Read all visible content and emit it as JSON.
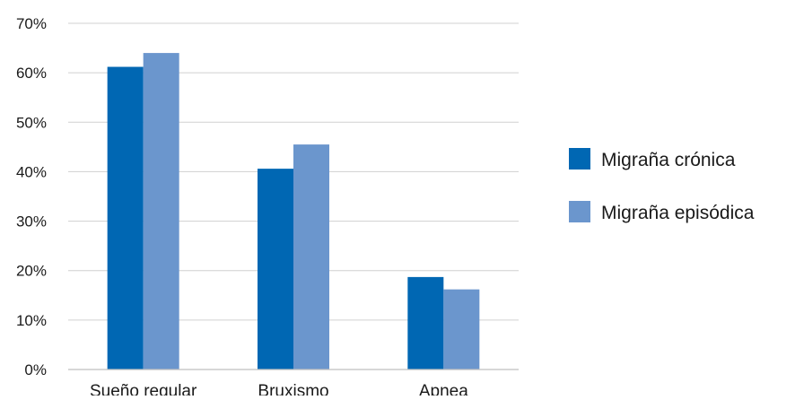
{
  "chart_data": {
    "type": "bar",
    "title": "",
    "xlabel": "",
    "ylabel": "",
    "categories": [
      "Sueño regular",
      "Bruxismo",
      "Apnea"
    ],
    "series": [
      {
        "name": "Migraña crónica",
        "values": [
          61.2,
          40.6,
          18.7
        ],
        "color": "#0067b3"
      },
      {
        "name": "Migraña episódica",
        "values": [
          64.0,
          45.5,
          16.2
        ],
        "color": "#6b96cd"
      }
    ],
    "ylim": [
      0,
      70
    ],
    "yticks": [
      0,
      10,
      20,
      30,
      40,
      50,
      60,
      70
    ],
    "ytick_labels": [
      "0%",
      "10%",
      "20%",
      "30%",
      "40%",
      "50%",
      "60%",
      "70%"
    ],
    "grid": true,
    "legend_position": "right"
  }
}
